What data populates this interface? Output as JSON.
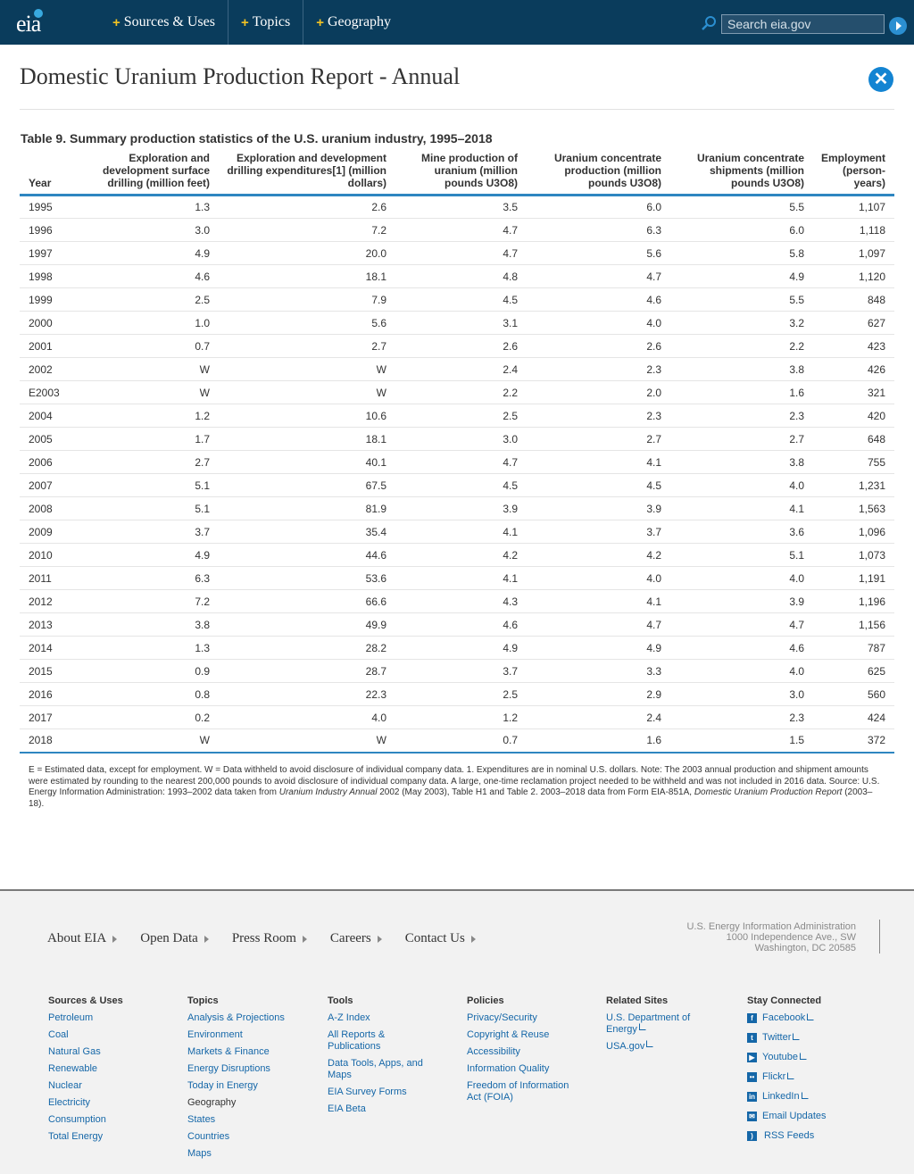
{
  "header": {
    "logo": "eia",
    "nav": [
      "Sources & Uses",
      "Topics",
      "Geography"
    ],
    "search_placeholder": "Search eia.gov"
  },
  "page": {
    "title": "Domestic Uranium Production Report - Annual",
    "table_title": "Table 9. Summary production statistics of the U.S. uranium industry, 1995–2018"
  },
  "table": {
    "headers": [
      "Year",
      "Exploration and development surface drilling (million feet)",
      "Exploration and development drilling expenditures[1] (million dollars)",
      "Mine production of uranium (million pounds U3O8)",
      "Uranium concentrate production (million pounds U3O8)",
      "Uranium concentrate shipments (million pounds U3O8)",
      "Employment (person-years)"
    ],
    "rows": [
      [
        "1995",
        "1.3",
        "2.6",
        "3.5",
        "6.0",
        "5.5",
        "1,107"
      ],
      [
        "1996",
        "3.0",
        "7.2",
        "4.7",
        "6.3",
        "6.0",
        "1,118"
      ],
      [
        "1997",
        "4.9",
        "20.0",
        "4.7",
        "5.6",
        "5.8",
        "1,097"
      ],
      [
        "1998",
        "4.6",
        "18.1",
        "4.8",
        "4.7",
        "4.9",
        "1,120"
      ],
      [
        "1999",
        "2.5",
        "7.9",
        "4.5",
        "4.6",
        "5.5",
        "848"
      ],
      [
        "2000",
        "1.0",
        "5.6",
        "3.1",
        "4.0",
        "3.2",
        "627"
      ],
      [
        "2001",
        "0.7",
        "2.7",
        "2.6",
        "2.6",
        "2.2",
        "423"
      ],
      [
        "2002",
        "W",
        "W",
        "2.4",
        "2.3",
        "3.8",
        "426"
      ],
      [
        "E2003",
        "W",
        "W",
        "2.2",
        "2.0",
        "1.6",
        "321"
      ],
      [
        "2004",
        "1.2",
        "10.6",
        "2.5",
        "2.3",
        "2.3",
        "420"
      ],
      [
        "2005",
        "1.7",
        "18.1",
        "3.0",
        "2.7",
        "2.7",
        "648"
      ],
      [
        "2006",
        "2.7",
        "40.1",
        "4.7",
        "4.1",
        "3.8",
        "755"
      ],
      [
        "2007",
        "5.1",
        "67.5",
        "4.5",
        "4.5",
        "4.0",
        "1,231"
      ],
      [
        "2008",
        "5.1",
        "81.9",
        "3.9",
        "3.9",
        "4.1",
        "1,563"
      ],
      [
        "2009",
        "3.7",
        "35.4",
        "4.1",
        "3.7",
        "3.6",
        "1,096"
      ],
      [
        "2010",
        "4.9",
        "44.6",
        "4.2",
        "4.2",
        "5.1",
        "1,073"
      ],
      [
        "2011",
        "6.3",
        "53.6",
        "4.1",
        "4.0",
        "4.0",
        "1,191"
      ],
      [
        "2012",
        "7.2",
        "66.6",
        "4.3",
        "4.1",
        "3.9",
        "1,196"
      ],
      [
        "2013",
        "3.8",
        "49.9",
        "4.6",
        "4.7",
        "4.7",
        "1,156"
      ],
      [
        "2014",
        "1.3",
        "28.2",
        "4.9",
        "4.9",
        "4.6",
        "787"
      ],
      [
        "2015",
        "0.9",
        "28.7",
        "3.7",
        "3.3",
        "4.0",
        "625"
      ],
      [
        "2016",
        "0.8",
        "22.3",
        "2.5",
        "2.9",
        "3.0",
        "560"
      ],
      [
        "2017",
        "0.2",
        "4.0",
        "1.2",
        "2.4",
        "2.3",
        "424"
      ],
      [
        "2018",
        "W",
        "W",
        "0.7",
        "1.6",
        "1.5",
        "372"
      ]
    ]
  },
  "notes": {
    "part1": "E = Estimated data, except for employment. W = Data withheld to avoid disclosure of individual company data. 1. Expenditures are in nominal U.S. dollars. Note: The 2003 annual production and shipment amounts were estimated by rounding to the nearest 200,000 pounds to avoid disclosure of individual company data. A large, one-time reclamation project needed to be withheld and was not included in 2016 data. Source: U.S. Energy Information Administration: 1993–2002 data taken from ",
    "italic1": "Uranium Industry Annual",
    "part2": " 2002 (May 2003), Table H1 and Table 2. 2003–2018 data from Form EIA-851A, ",
    "italic2": "Domestic Uranium Production Report",
    "part3": " (2003–18)."
  },
  "footer": {
    "nav": [
      "About EIA",
      "Open Data",
      "Press Room",
      "Careers",
      "Contact Us"
    ],
    "address": [
      "U.S. Energy Information Administration",
      "1000 Independence Ave., SW",
      "Washington, DC 20585"
    ],
    "sources": {
      "heading": "Sources & Uses",
      "links": [
        "Petroleum",
        "Coal",
        "Natural Gas",
        "Renewable",
        "Nuclear",
        "Electricity",
        "Consumption",
        "Total Energy"
      ]
    },
    "topics": {
      "heading": "Topics",
      "links": [
        "Analysis & Projections",
        "Environment",
        "Markets & Finance",
        "Energy Disruptions",
        "Today in Energy"
      ],
      "subheading": "Geography",
      "sublinks": [
        "States",
        "Countries",
        "Maps"
      ]
    },
    "tools": {
      "heading": "Tools",
      "links": [
        "A-Z Index",
        "All Reports & Publications",
        "Data Tools, Apps, and Maps",
        "EIA Survey Forms",
        "EIA Beta"
      ]
    },
    "policies": {
      "heading": "Policies",
      "links": [
        "Privacy/Security",
        "Copyright & Reuse",
        "Accessibility",
        "Information Quality",
        "Freedom of Information Act (FOIA)"
      ]
    },
    "related": {
      "heading": "Related Sites",
      "links": [
        "U.S. Department of Energy",
        "USA.gov"
      ]
    },
    "connected": {
      "heading": "Stay Connected",
      "links": [
        "Facebook",
        "Twitter",
        "Youtube",
        "Flickr",
        "LinkedIn",
        "Email Updates",
        "RSS Feeds"
      ]
    }
  },
  "colors": {
    "header_bg": "#0a3c5c",
    "accent": "#2e86c1",
    "link": "#1567a8",
    "plus": "#f3c323"
  }
}
